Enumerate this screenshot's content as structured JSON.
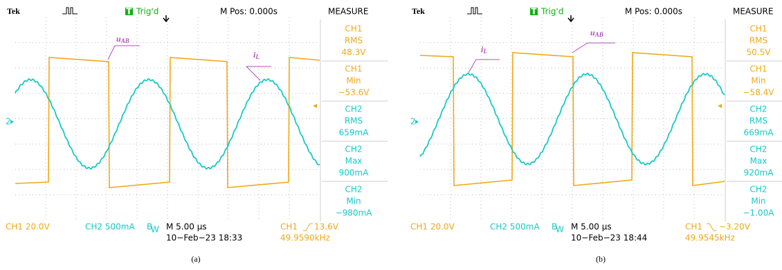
{
  "panels": [
    {
      "header": {
        "brand": "Tek",
        "trigger_badge": "T",
        "trigger": "Trig'd",
        "mpos": "M Pos: 0.000s"
      },
      "measure": {
        "title": "MEASURE",
        "items": [
          [
            "CH1",
            "RMS",
            "48.3V"
          ],
          [
            "CH1",
            "Min",
            "−53.6V"
          ],
          [
            "CH2",
            "RMS",
            "659mA"
          ],
          [
            "CH2",
            "Max",
            "900mA"
          ],
          [
            "CH2",
            "Min",
            "−980mA"
          ]
        ]
      },
      "annotations": [
        {
          "main": "u",
          "sub": "AB"
        },
        {
          "main": "i",
          "sub": "L"
        }
      ],
      "marker": "2",
      "footer": {
        "ch1": "CH1  20.0V",
        "ch2": "CH2  500mA",
        "bw": "B",
        "bw_sub": "W",
        "time": "M 5.00 µs",
        "date": "10−Feb−23 18:33",
        "trig_ch": "CH1",
        "trig_level": "13.6V",
        "freq": "49.9590kHz"
      },
      "caption": "(a)"
    },
    {
      "header": {
        "brand": "Tek",
        "trigger_badge": "T",
        "trigger": "Trig'd",
        "mpos": "M Pos: 0.000s"
      },
      "measure": {
        "title": "MEASURE",
        "items": [
          [
            "CH1",
            "RMS",
            "50.5V"
          ],
          [
            "CH1",
            "Min",
            "−58.4V"
          ],
          [
            "CH2",
            "RMS",
            "669mA"
          ],
          [
            "CH2",
            "Max",
            "920mA"
          ],
          [
            "CH2",
            "Min",
            "−1.00A"
          ]
        ]
      },
      "annotations": [
        {
          "main": "i",
          "sub": "L"
        },
        {
          "main": "u",
          "sub": "AB"
        }
      ],
      "marker": "2",
      "footer": {
        "ch1": "CH1  20.0V",
        "ch2": "CH2  500mA",
        "bw": "B",
        "bw_sub": "W",
        "time": "M 5.00 µs",
        "date": "10−Feb−23 18:44",
        "trig_ch": "CH1",
        "trig_level": "−3.20V",
        "freq": "49.9545kHz"
      },
      "caption": "(b)"
    }
  ]
}
